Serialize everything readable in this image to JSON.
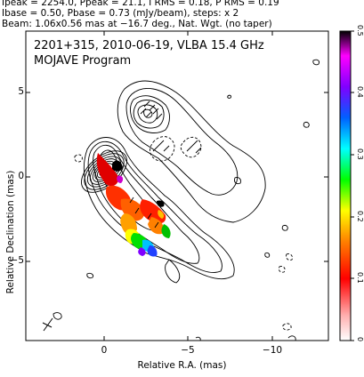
{
  "header": {
    "line0": "Ipeak = 2254.0, Ppeak = 21.1, I RMS = 0.18, P RMS = 0.19",
    "line1": "Ibase = 0.50, Pbase = 0.73 (mJy/beam), steps: x 2",
    "line2": "Beam: 1.06x0.56 mas at −16.7 deg., Nat. Wgt. (no taper)"
  },
  "map": {
    "title": "2201+315, 2010-06-19, VLBA 15.4 GHz",
    "program": "MOJAVE Program",
    "xlabel": "Relative R.A. (mas)",
    "ylabel": "Relative Declination (mas)",
    "yticks": [
      "5",
      "0",
      "−5"
    ],
    "xticks": [
      "0",
      "−5",
      "−10"
    ],
    "colorbar_ticks": [
      "0.5",
      "0.4",
      "0.3",
      "0.2",
      "0.1",
      "0"
    ]
  }
}
